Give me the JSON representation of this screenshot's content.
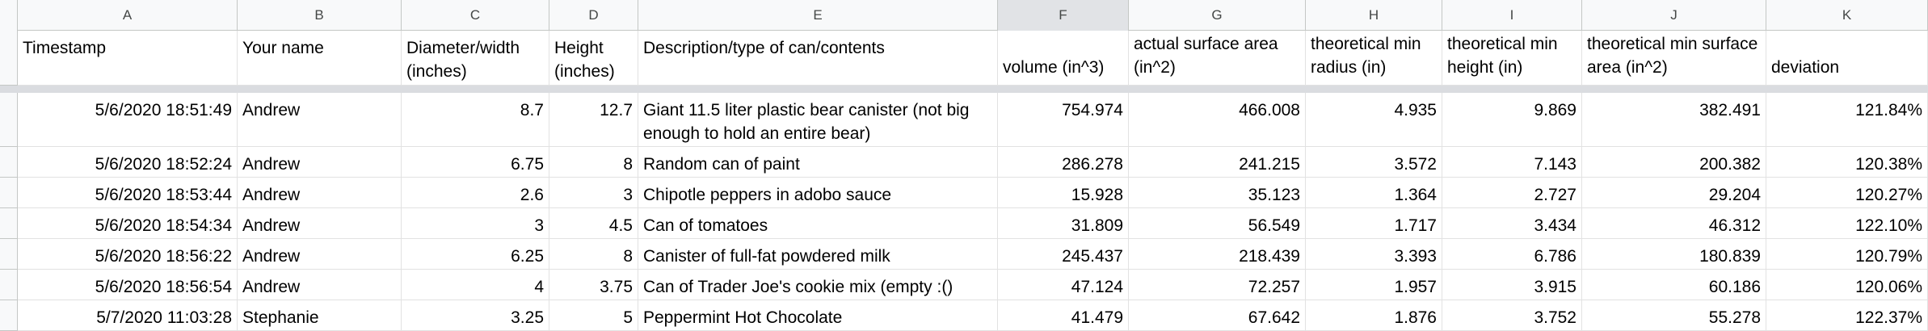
{
  "columns": [
    "A",
    "B",
    "C",
    "D",
    "E",
    "F",
    "G",
    "H",
    "I",
    "J",
    "K"
  ],
  "header": [
    "Timestamp",
    "Your name",
    "Diameter/width (inches)",
    "Height (inches)",
    "Description/type of can/contents",
    "volume (in^3)",
    "actual surface area (in^2)",
    "theoretical min radius (in)",
    "theoretical min height (in)",
    "theoretical min surface area (in^2)",
    "deviation"
  ],
  "rows": [
    [
      "5/6/2020 18:51:49",
      "Andrew",
      "8.7",
      "12.7",
      "Giant 11.5 liter plastic bear canister (not big enough to hold an entire bear)",
      "754.974",
      "466.008",
      "4.935",
      "9.869",
      "382.491",
      "121.84%"
    ],
    [
      "5/6/2020 18:52:24",
      "Andrew",
      "6.75",
      "8",
      "Random can of paint",
      "286.278",
      "241.215",
      "3.572",
      "7.143",
      "200.382",
      "120.38%"
    ],
    [
      "5/6/2020 18:53:44",
      "Andrew",
      "2.6",
      "3",
      "Chipotle peppers in adobo sauce",
      "15.928",
      "35.123",
      "1.364",
      "2.727",
      "29.204",
      "120.27%"
    ],
    [
      "5/6/2020 18:54:34",
      "Andrew",
      "3",
      "4.5",
      "Can of tomatoes",
      "31.809",
      "56.549",
      "1.717",
      "3.434",
      "46.312",
      "122.10%"
    ],
    [
      "5/6/2020 18:56:22",
      "Andrew",
      "6.25",
      "8",
      "Canister of full-fat powdered milk",
      "245.437",
      "218.439",
      "3.393",
      "6.786",
      "180.839",
      "120.79%"
    ],
    [
      "5/6/2020 18:56:54",
      "Andrew",
      "4",
      "3.75",
      "Can of Trader Joe's cookie mix (empty :()",
      "47.124",
      "72.257",
      "1.957",
      "3.915",
      "60.186",
      "120.06%"
    ],
    [
      "5/7/2020 11:03:28",
      "Stephanie",
      "3.25",
      "5",
      "Peppermint Hot Chocolate",
      "41.479",
      "67.642",
      "1.876",
      "3.752",
      "55.278",
      "122.37%"
    ]
  ]
}
